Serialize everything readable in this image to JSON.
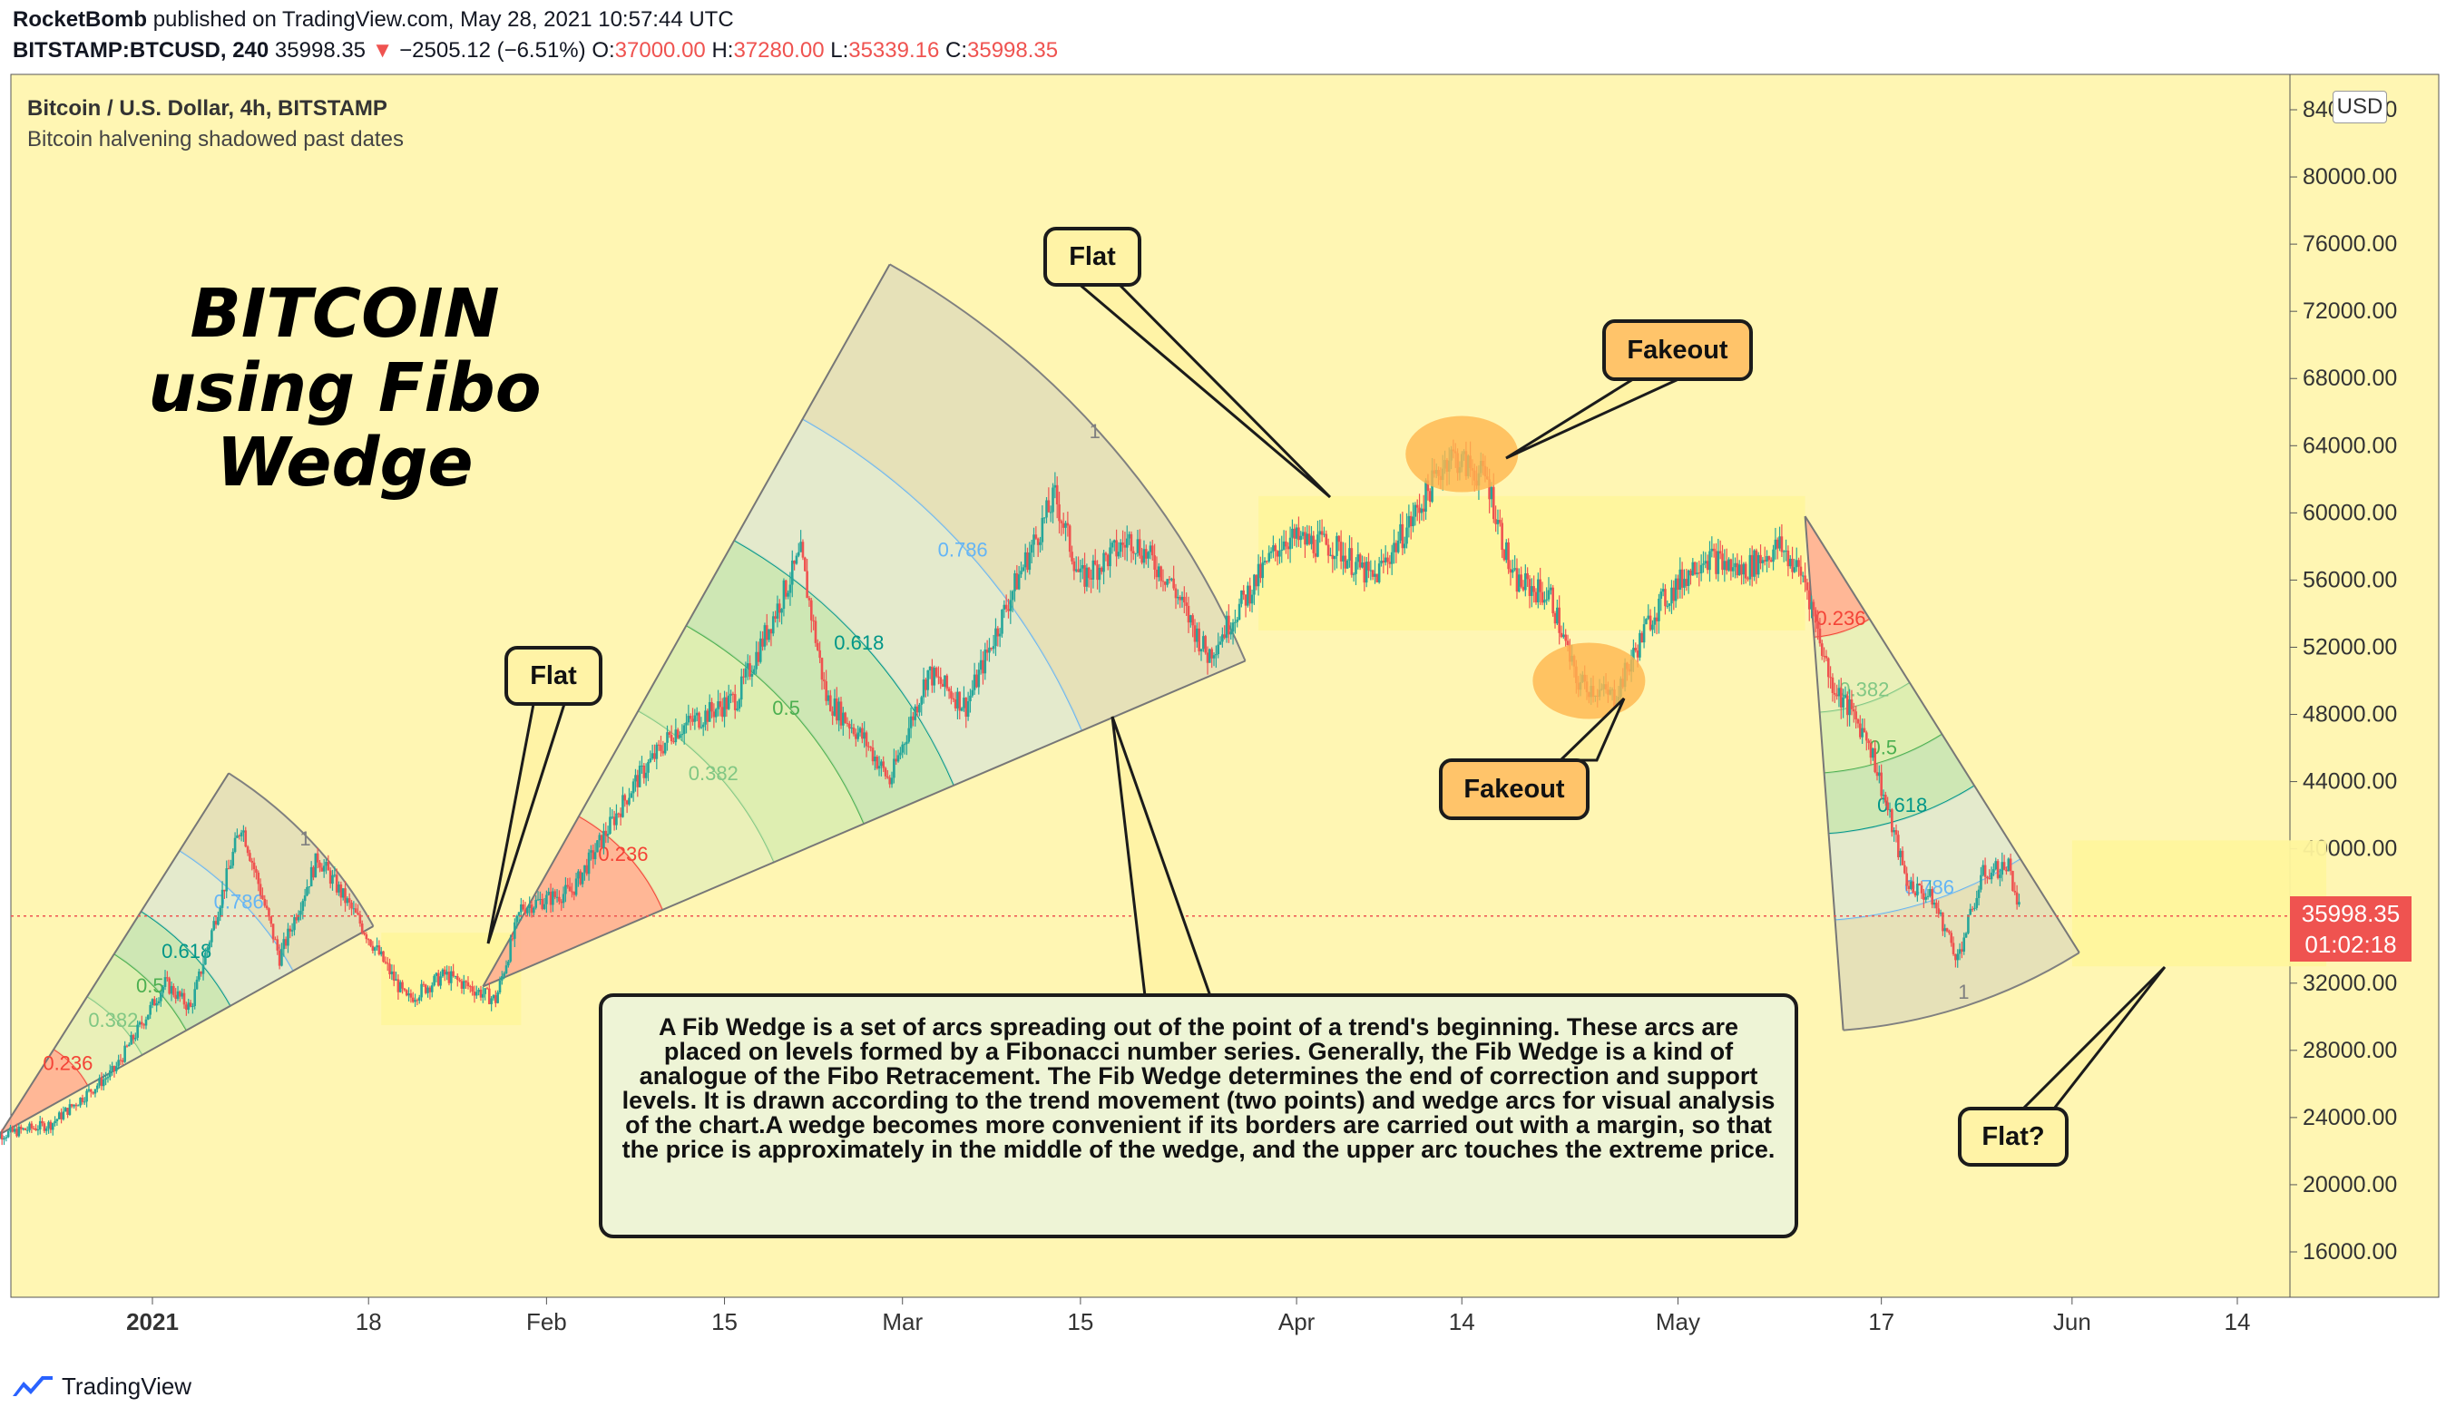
{
  "header": {
    "author": "RocketBomb",
    "published_text": "published on TradingView.com, May 28, 2021 10:57:44 UTC",
    "symbol": "BITSTAMP:BTCUSD, 240",
    "last": "35998.35",
    "down_arrow": "▼",
    "change": "−2505.12 (−6.51%)",
    "o_label": "O:",
    "o_value": "37000.00",
    "h_label": "H:",
    "h_value": "37280.00",
    "l_label": "L:",
    "l_value": "35339.16",
    "c_label": "C:",
    "c_value": "35998.35"
  },
  "legend": {
    "title": "Bitcoin / U.S. Dollar, 4h, BITSTAMP",
    "indicator": "Bitcoin halvening shadowed past dates"
  },
  "big_title": {
    "line1": "BITCOIN",
    "line2": "using Fibo Wedge"
  },
  "callouts": {
    "flat_left": "Flat",
    "flat_top": "Flat",
    "fakeout_top": "Fakeout",
    "fakeout_bottom": "Fakeout",
    "flat_question": "Flat?"
  },
  "infobox": {
    "text": "A Fib Wedge is a set of arcs spreading out of the point of a trend's beginning. These arcs are placed on levels formed by a Fibonacci number series. Generally, the Fib Wedge is a kind of analogue of the Fibo Retracement. The Fib Wedge determines the end of correction and support levels. It is drawn according to the trend movement (two points) and wedge arcs for visual analysis of the chart.A wedge becomes more convenient if its borders are carried out with a margin, so that the price is approximately in the middle of the wedge, and the upper arc touches the extreme price."
  },
  "price_axis": {
    "currency": "USD",
    "last_price_label": "35998.35",
    "countdown": "01:02:18"
  },
  "footer": {
    "brand": "TradingView"
  },
  "colors": {
    "background": "#fff6b3",
    "up": "#26a69a",
    "down": "#ef5350",
    "fib_0236": "#f44336",
    "fib_0382": "#81c784",
    "fib_05": "#4caf50",
    "fib_0618": "#009688",
    "fib_0786": "#64b5f6",
    "fib_1": "#808080",
    "highlight": "#fff59d",
    "fakeout_ellipse": "#ffb74d"
  },
  "chart_data": {
    "type": "candlestick",
    "title": "Bitcoin / U.S. Dollar, 4h, BITSTAMP",
    "ylim": [
      12000,
      85000
    ],
    "y_ticks": [
      16000,
      20000,
      24000,
      28000,
      32000,
      36000,
      40000,
      44000,
      48000,
      52000,
      56000,
      60000,
      64000,
      68000,
      72000,
      76000,
      80000,
      84000
    ],
    "y_tick_labels": [
      "16000.00",
      "20000.00",
      "24000.00",
      "28000.00",
      "32000.00",
      "36000.00",
      "40000.00",
      "44000.00",
      "48000.00",
      "52000.00",
      "56000.00",
      "60000.00",
      "64000.00",
      "68000.00",
      "72000.00",
      "76000.00",
      "80000.00",
      "84000.00"
    ],
    "x_range": [
      "2020-12-19",
      "2021-06-20"
    ],
    "x_ticks": [
      {
        "date": "2021-01-01",
        "label": "2021"
      },
      {
        "date": "2021-01-18",
        "label": "18"
      },
      {
        "date": "2021-02-01",
        "label": "Feb"
      },
      {
        "date": "2021-02-15",
        "label": "15"
      },
      {
        "date": "2021-03-01",
        "label": "Mar"
      },
      {
        "date": "2021-03-15",
        "label": "15"
      },
      {
        "date": "2021-04-01",
        "label": "Apr"
      },
      {
        "date": "2021-04-14",
        "label": "14"
      },
      {
        "date": "2021-05-01",
        "label": "May"
      },
      {
        "date": "2021-05-17",
        "label": "17"
      },
      {
        "date": "2021-06-01",
        "label": "Jun"
      },
      {
        "date": "2021-06-14",
        "label": "14"
      }
    ],
    "price_path": [
      [
        "2020-12-19",
        22800
      ],
      [
        "2020-12-24",
        23600
      ],
      [
        "2020-12-29",
        26800
      ],
      [
        "2021-01-02",
        32000
      ],
      [
        "2021-01-04",
        30500
      ],
      [
        "2021-01-08",
        41500
      ],
      [
        "2021-01-11",
        33500
      ],
      [
        "2021-01-14",
        39500
      ],
      [
        "2021-01-17",
        36000
      ],
      [
        "2021-01-21",
        31000
      ],
      [
        "2021-01-24",
        32500
      ],
      [
        "2021-01-28",
        31000
      ],
      [
        "2021-01-30",
        36500
      ],
      [
        "2021-02-03",
        37500
      ],
      [
        "2021-02-08",
        44000
      ],
      [
        "2021-02-11",
        47000
      ],
      [
        "2021-02-16",
        49000
      ],
      [
        "2021-02-21",
        57500
      ],
      [
        "2021-02-23",
        49000
      ],
      [
        "2021-02-26",
        46500
      ],
      [
        "2021-02-28",
        44000
      ],
      [
        "2021-03-03",
        50500
      ],
      [
        "2021-03-06",
        48500
      ],
      [
        "2021-03-10",
        56000
      ],
      [
        "2021-03-13",
        61000
      ],
      [
        "2021-03-15",
        56000
      ],
      [
        "2021-03-19",
        58500
      ],
      [
        "2021-03-22",
        56000
      ],
      [
        "2021-03-25",
        51500
      ],
      [
        "2021-03-28",
        55000
      ],
      [
        "2021-03-31",
        58500
      ],
      [
        "2021-04-04",
        58000
      ],
      [
        "2021-04-07",
        56000
      ],
      [
        "2021-04-10",
        59500
      ],
      [
        "2021-04-13",
        63500
      ],
      [
        "2021-04-16",
        62000
      ],
      [
        "2021-04-18",
        56000
      ],
      [
        "2021-04-21",
        55000
      ],
      [
        "2021-04-23",
        50000
      ],
      [
        "2021-04-26",
        49000
      ],
      [
        "2021-04-29",
        54000
      ],
      [
        "2021-05-03",
        57500
      ],
      [
        "2021-05-06",
        56500
      ],
      [
        "2021-05-09",
        58000
      ],
      [
        "2021-05-11",
        56000
      ],
      [
        "2021-05-13",
        50000
      ],
      [
        "2021-05-16",
        46500
      ],
      [
        "2021-05-19",
        38000
      ],
      [
        "2021-05-21",
        37000
      ],
      [
        "2021-05-23",
        33500
      ],
      [
        "2021-05-25",
        38500
      ],
      [
        "2021-05-27",
        39000
      ],
      [
        "2021-05-28",
        35998
      ]
    ],
    "last_price": 35998.35,
    "annotations": [
      {
        "text": "Flat",
        "type": "callout"
      },
      {
        "text": "Fakeout",
        "type": "callout"
      },
      {
        "text": "Flat?",
        "type": "callout"
      }
    ],
    "fib_wedge_levels": [
      {
        "level": 0.236,
        "label": "0.236",
        "color": "#f44336"
      },
      {
        "level": 0.382,
        "label": "0.382",
        "color": "#81c784"
      },
      {
        "level": 0.5,
        "label": "0.5",
        "color": "#4caf50"
      },
      {
        "level": 0.618,
        "label": "0.618",
        "color": "#009688"
      },
      {
        "level": 0.786,
        "label": "0.786",
        "color": "#64b5f6"
      },
      {
        "level": 1,
        "label": "1",
        "color": "#808080"
      }
    ],
    "fib_wedges": [
      {
        "start": [
          "2020-12-20",
          23000
        ],
        "dir1": [
          "2021-01-07",
          44500
        ],
        "dir2": [
          "2021-01-21",
          36500
        ],
        "r1_labels": [
          "0.236",
          "0.382",
          "0.5",
          "0.618",
          "0.786",
          "1"
        ]
      },
      {
        "start": [
          "2021-01-27",
          31800
        ],
        "dir1": [
          "2021-02-28",
          74800
        ],
        "dir2": [
          "2021-03-28",
          51200
        ],
        "r1_labels": [
          "0.236",
          "0.382",
          "0.5",
          "0.618",
          "0.786",
          "1"
        ]
      },
      {
        "start": [
          "2021-05-11",
          59800
        ],
        "dir1": [
          "2021-05-14",
          29200
        ],
        "dir2": [
          "2021-06-01",
          34500
        ],
        "r1_labels": [
          "0.236",
          "0.382",
          "0.5",
          "0.618",
          "0.786",
          "1"
        ]
      }
    ],
    "highlight_zones": [
      {
        "from": "2021-01-19",
        "to": "2021-01-30",
        "low": 29500,
        "high": 35000
      },
      {
        "from": "2021-03-29",
        "to": "2021-05-11",
        "low": 53000,
        "high": 61000
      },
      {
        "from": "2021-06-01",
        "to": "2021-06-21",
        "low": 33000,
        "high": 40500
      }
    ],
    "fakeout_markers": [
      {
        "date": "2021-04-14",
        "price": 63500
      },
      {
        "date": "2021-04-24",
        "price": 50000
      }
    ]
  }
}
